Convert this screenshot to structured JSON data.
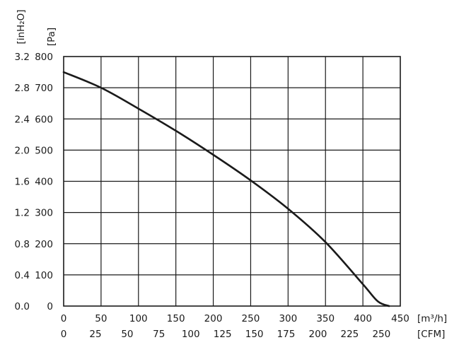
{
  "chart_data": {
    "type": "line",
    "title": "",
    "x_primary": {
      "unit": "[m³/h]",
      "range": [
        0,
        450
      ],
      "ticks": [
        0,
        50,
        100,
        150,
        200,
        250,
        300,
        350,
        400,
        450
      ]
    },
    "x_secondary": {
      "unit": "[CFM]",
      "ticks": [
        "0",
        "25",
        "50",
        "75",
        "100",
        "125",
        "150",
        "175",
        "200",
        "225",
        "250"
      ],
      "tick_values_m3h": [
        0,
        42.5,
        85,
        127.4,
        169.9,
        212.4,
        254.9,
        297.3,
        339.8,
        382.3,
        424.8
      ]
    },
    "y_primary": {
      "unit": "[Pa]",
      "range": [
        0,
        800
      ],
      "ticks": [
        0,
        100,
        200,
        300,
        400,
        500,
        600,
        700,
        800
      ]
    },
    "y_secondary": {
      "unit": "[inH₂O]",
      "ticks": [
        "0.0",
        "0.4",
        "0.8",
        "1.2",
        "1.6",
        "2.0",
        "2.4",
        "2.8",
        "3.2"
      ]
    },
    "grid": true,
    "series": [
      {
        "x": [
          0,
          50,
          100,
          150,
          200,
          250,
          300,
          350,
          400,
          420,
          435
        ],
        "y": [
          750,
          700,
          633,
          562,
          485,
          403,
          312,
          205,
          70,
          15,
          0
        ]
      }
    ]
  }
}
